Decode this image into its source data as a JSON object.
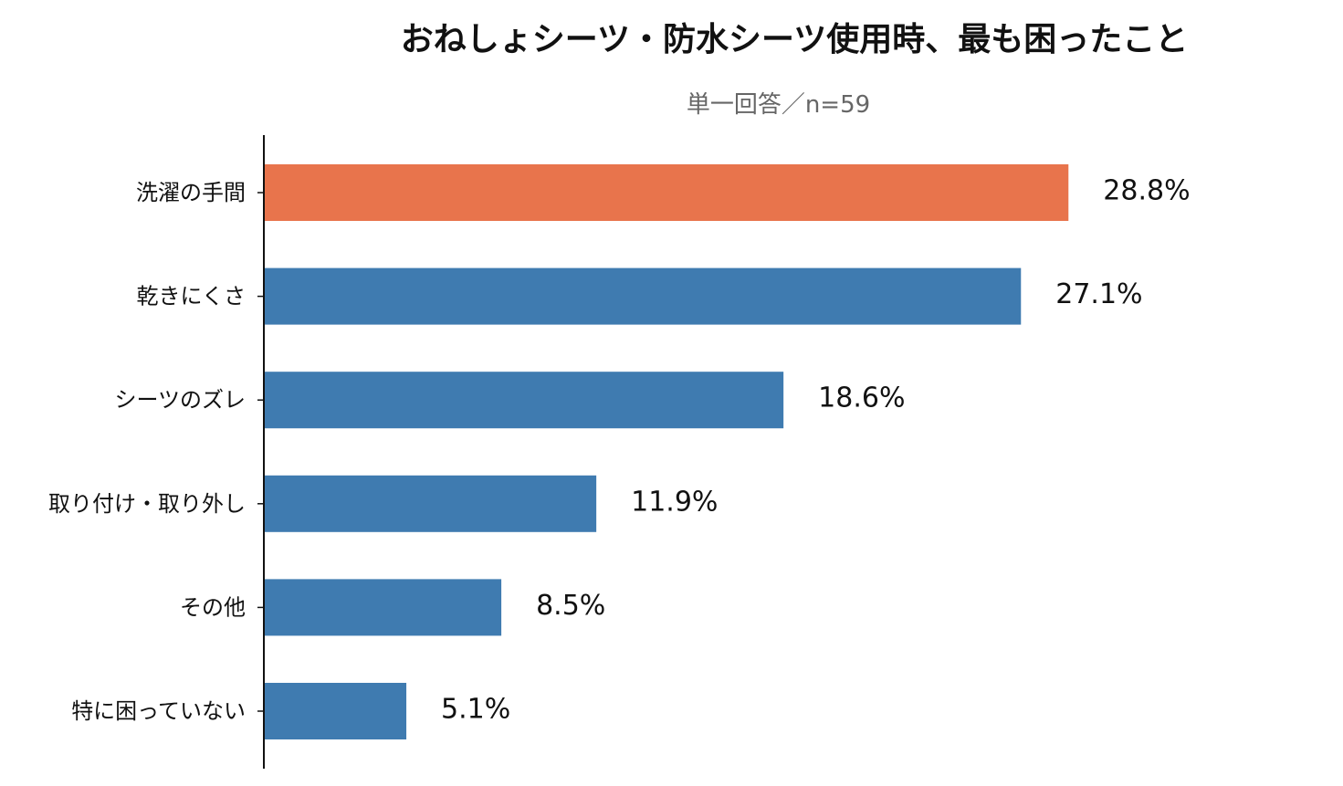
{
  "chart_data": {
    "type": "bar",
    "orientation": "horizontal",
    "title": "おねしょシーツ・防水シーツ使用時、最も困ったこと",
    "subtitle": "単一回答／n=59",
    "categories": [
      "洗濯の手間",
      "乾きにくさ",
      "シーツのズレ",
      "取り付け・取り外し",
      "その他",
      "特に困っていない"
    ],
    "values": [
      28.8,
      27.1,
      18.6,
      11.9,
      8.5,
      5.1
    ],
    "value_labels": [
      "28.8%",
      "27.1%",
      "18.6%",
      "11.9%",
      "8.5%",
      "5.1%"
    ],
    "highlight_index": 0,
    "colors": {
      "highlight": "#E8744C",
      "default": "#3F7BB0"
    },
    "xlim": [
      0,
      38
    ],
    "grid": false,
    "legend": "none"
  }
}
